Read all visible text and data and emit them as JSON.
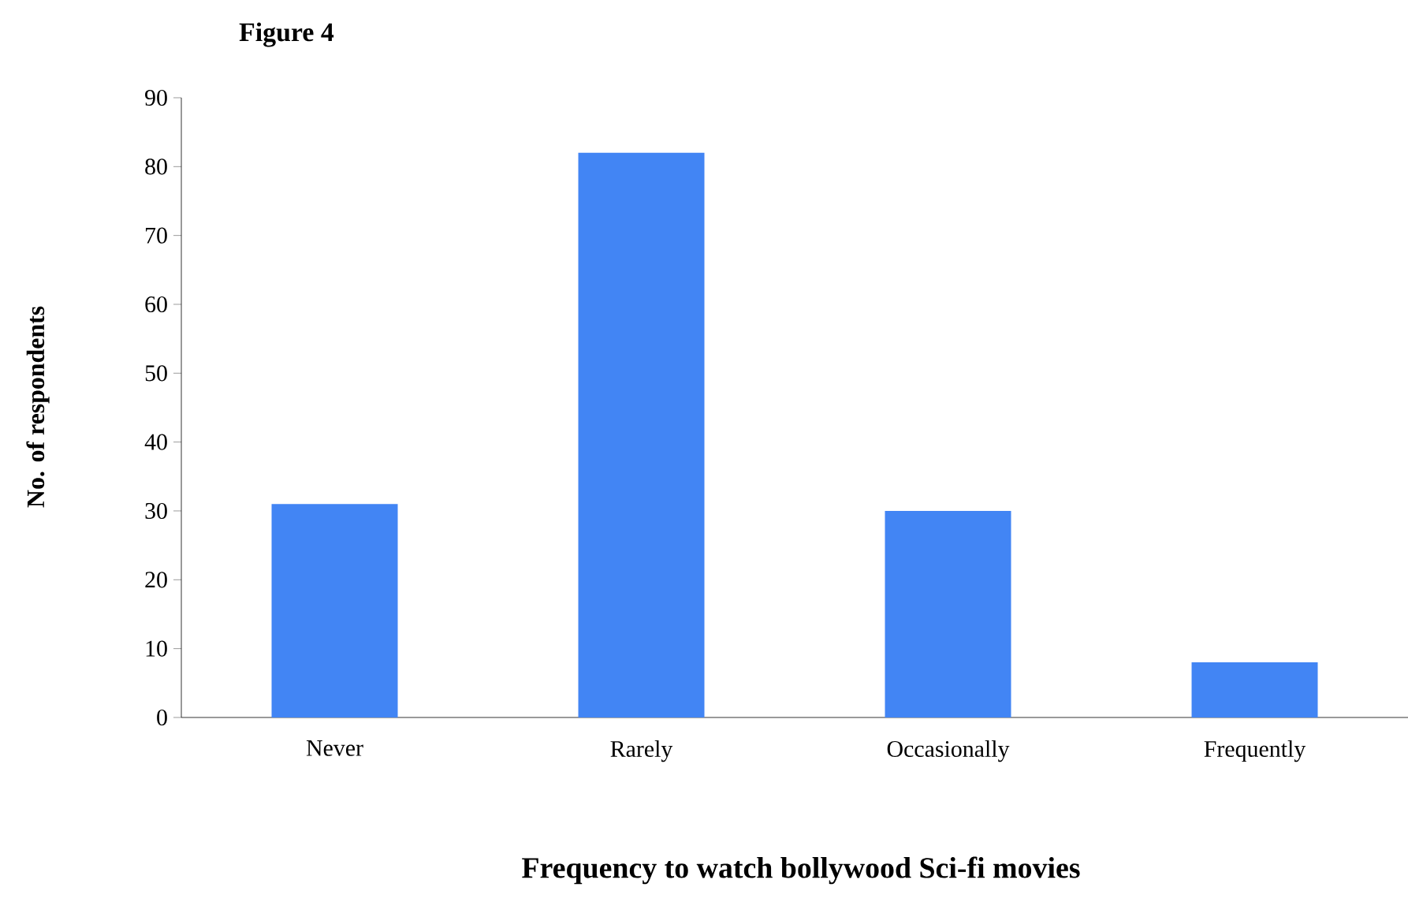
{
  "chart_data": {
    "type": "bar",
    "title": "Figure 4",
    "xlabel": "Frequency to watch bollywood Sci-fi movies",
    "ylabel": "No. of respondents",
    "categories": [
      "Never",
      "Rarely",
      "Occasionally",
      "Frequently"
    ],
    "values": [
      31,
      82,
      30,
      8
    ],
    "color": "#4285f4",
    "ylim": [
      0,
      90
    ],
    "yticks": [
      0,
      10,
      20,
      30,
      40,
      50,
      60,
      70,
      80,
      90
    ],
    "grid": false
  }
}
